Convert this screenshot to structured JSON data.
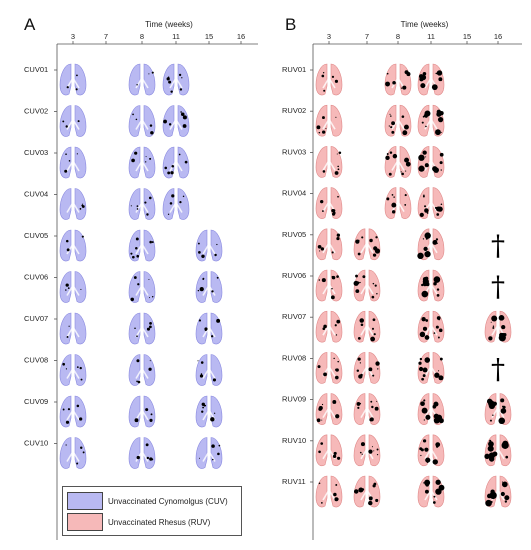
{
  "panels": [
    {
      "letter": "A",
      "axis_title": "Time (weeks)",
      "ticks": [
        "3",
        "7",
        "8",
        "11",
        "15",
        "16"
      ],
      "color_fill": "#b9b9f2",
      "color_stroke": "#8a8ae0",
      "rows": [
        {
          "label": "CUV01",
          "weeks": [
            "3",
            "8",
            "11"
          ]
        },
        {
          "label": "CUV02",
          "weeks": [
            "3",
            "8",
            "11"
          ]
        },
        {
          "label": "CUV03",
          "weeks": [
            "3",
            "8",
            "11"
          ]
        },
        {
          "label": "CUV04",
          "weeks": [
            "3",
            "8",
            "11"
          ]
        },
        {
          "label": "CUV05",
          "weeks": [
            "3",
            "8",
            "15"
          ]
        },
        {
          "label": "CUV06",
          "weeks": [
            "3",
            "8",
            "15"
          ]
        },
        {
          "label": "CUV07",
          "weeks": [
            "3",
            "8",
            "15"
          ]
        },
        {
          "label": "CUV08",
          "weeks": [
            "3",
            "8",
            "15"
          ]
        },
        {
          "label": "CUV09",
          "weeks": [
            "3",
            "8",
            "15"
          ]
        },
        {
          "label": "CUV10",
          "weeks": [
            "3",
            "8",
            "15"
          ]
        }
      ]
    },
    {
      "letter": "B",
      "axis_title": "Time (weeks)",
      "ticks": [
        "3",
        "7",
        "8",
        "11",
        "15",
        "16"
      ],
      "color_fill": "#f6b9b9",
      "color_stroke": "#e08a8a",
      "death_symbol": "†",
      "rows": [
        {
          "label": "RUV01",
          "weeks": [
            "3",
            "8",
            "11"
          ]
        },
        {
          "label": "RUV02",
          "weeks": [
            "3",
            "8",
            "11"
          ]
        },
        {
          "label": "RUV03",
          "weeks": [
            "3",
            "8",
            "11"
          ]
        },
        {
          "label": "RUV04",
          "weeks": [
            "3",
            "8",
            "11"
          ]
        },
        {
          "label": "RUV05",
          "weeks": [
            "3",
            "7",
            "11"
          ],
          "death_week": "16"
        },
        {
          "label": "RUV06",
          "weeks": [
            "3",
            "7",
            "11"
          ],
          "death_week": "16"
        },
        {
          "label": "RUV07",
          "weeks": [
            "3",
            "7",
            "11",
            "16"
          ]
        },
        {
          "label": "RUV08",
          "weeks": [
            "3",
            "7",
            "11"
          ],
          "death_week": "16"
        },
        {
          "label": "RUV09",
          "weeks": [
            "3",
            "7",
            "11",
            "16"
          ]
        },
        {
          "label": "RUV10",
          "weeks": [
            "3",
            "7",
            "11",
            "16"
          ]
        },
        {
          "label": "RUV11",
          "weeks": [
            "3",
            "7",
            "11",
            "16"
          ]
        }
      ]
    }
  ],
  "legend": {
    "items": [
      {
        "label": "Unvaccinated Cynomolgus (CUV)",
        "color": "#b9b9f2"
      },
      {
        "label": "Unvaccinated Rhesus (RUV)",
        "color": "#f6b9b9"
      }
    ]
  }
}
